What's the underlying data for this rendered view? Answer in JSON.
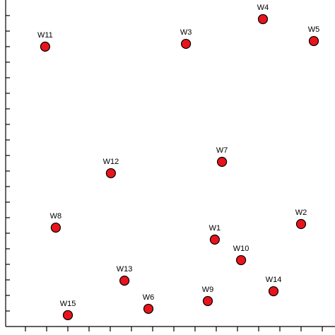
{
  "chart_data": {
    "type": "scatter",
    "labels": [
      "W1",
      "W2",
      "W3",
      "W4",
      "W5",
      "W6",
      "W7",
      "W8",
      "W9",
      "W10",
      "W11",
      "W12",
      "W13",
      "W14",
      "W15"
    ],
    "x": [
      9.93,
      14.0,
      8.57,
      12.2,
      14.6,
      6.8,
      10.27,
      2.43,
      9.6,
      11.17,
      1.93,
      5.03,
      5.67,
      12.7,
      3.0
    ],
    "y": [
      5.59,
      6.59,
      18.18,
      19.77,
      18.36,
      1.14,
      10.59,
      6.36,
      1.64,
      4.27,
      18.0,
      9.86,
      2.95,
      2.27,
      0.73
    ],
    "color": "#e8141c",
    "xlim": [
      0,
      15.6
    ],
    "ylim": [
      0,
      21
    ],
    "xticks": [
      1,
      2,
      3,
      4,
      5,
      6,
      7,
      8,
      9,
      10,
      11,
      12,
      13,
      14,
      15
    ],
    "yticks": [
      1,
      2,
      3,
      4,
      5,
      6,
      7,
      8,
      9,
      10,
      11,
      12,
      13,
      14,
      15,
      16,
      17,
      18,
      19,
      20
    ]
  }
}
